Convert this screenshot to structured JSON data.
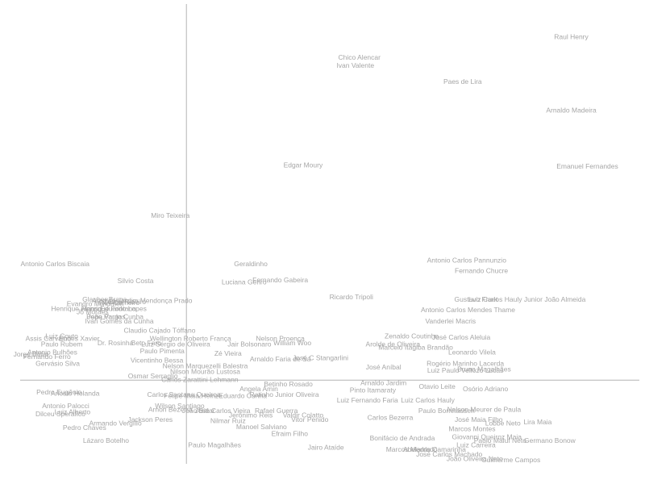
{
  "chart_data": {
    "type": "scatter",
    "title": "",
    "xlabel": "",
    "ylabel": "",
    "xlim": [
      -1.24,
      3.39
    ],
    "ylim": [
      -0.73,
      3.28
    ],
    "grid": false,
    "origin_axes": true,
    "color": "#a6a6a6",
    "points": [
      {
        "x": 2.87,
        "y": 2.99,
        "label": "Raul Henry"
      },
      {
        "x": 1.29,
        "y": 2.81,
        "label": "Chico Alencar"
      },
      {
        "x": 1.26,
        "y": 2.74,
        "label": "Ivan Valente"
      },
      {
        "x": 2.06,
        "y": 2.6,
        "label": "Paes de Lira"
      },
      {
        "x": 2.87,
        "y": 2.35,
        "label": "Arnaldo Madeira"
      },
      {
        "x": 0.87,
        "y": 1.87,
        "label": "Edgar Moury"
      },
      {
        "x": 2.99,
        "y": 1.86,
        "label": "Emanuel Fernandes"
      },
      {
        "x": -0.12,
        "y": 1.43,
        "label": "Miro Teixeira"
      },
      {
        "x": -0.98,
        "y": 1.01,
        "label": "Antonio Carlos Biscaia"
      },
      {
        "x": 0.48,
        "y": 1.01,
        "label": "Geraldinho"
      },
      {
        "x": 2.09,
        "y": 1.04,
        "label": "Antonio Carlos Pannunzio"
      },
      {
        "x": 2.2,
        "y": 0.95,
        "label": "Fernando Chucre"
      },
      {
        "x": -0.38,
        "y": 0.86,
        "label": "Silvio Costa"
      },
      {
        "x": 0.43,
        "y": 0.85,
        "label": "Luciana Genro"
      },
      {
        "x": 0.7,
        "y": 0.87,
        "label": "Fernando Gabeira"
      },
      {
        "x": 1.23,
        "y": 0.72,
        "label": "Ricardo Tripoli"
      },
      {
        "x": 2.16,
        "y": 0.7,
        "label": "Gustavo Fruet"
      },
      {
        "x": 2.54,
        "y": 0.7,
        "label": "Luiz Carlos Hauly Junior João Almeida"
      },
      {
        "x": -0.61,
        "y": 0.7,
        "label": "Glauber Braga"
      },
      {
        "x": -0.5,
        "y": 0.67,
        "label": "Ruy Carneiro"
      },
      {
        "x": -0.46,
        "y": 0.68,
        "label": "Zezéu Ribeiro"
      },
      {
        "x": -0.33,
        "y": 0.69,
        "label": "Arnaldo Jardim Mendonça Prado"
      },
      {
        "x": -0.68,
        "y": 0.66,
        "label": "Evandro Milhomen"
      },
      {
        "x": -0.58,
        "y": 0.62,
        "label": "Henrique Fontana"
      },
      {
        "x": -0.47,
        "y": 0.62,
        "label": "Eduardo Lopes"
      },
      {
        "x": -0.82,
        "y": 0.62,
        "label": "Henrique Afonso"
      },
      {
        "x": -0.7,
        "y": 0.59,
        "label": "Jô Moraes"
      },
      {
        "x": -0.6,
        "y": 0.55,
        "label": "Pepe Vargas"
      },
      {
        "x": -0.53,
        "y": 0.55,
        "label": "João Paulo Cunha"
      },
      {
        "x": 2.1,
        "y": 0.61,
        "label": "Antonio Carlos Mendes Thame"
      },
      {
        "x": -0.5,
        "y": 0.51,
        "label": "Ivan Gomes da Cunha"
      },
      {
        "x": 1.97,
        "y": 0.51,
        "label": "Vanderlei Macris"
      },
      {
        "x": -0.2,
        "y": 0.43,
        "label": "Claudio Cajado Tóffano"
      },
      {
        "x": 0.03,
        "y": 0.36,
        "label": "Wellington Roberto França"
      },
      {
        "x": 0.47,
        "y": 0.31,
        "label": "Jair Bolsonaro"
      },
      {
        "x": 0.7,
        "y": 0.36,
        "label": "Nelson Proença"
      },
      {
        "x": 0.79,
        "y": 0.32,
        "label": "William Woo"
      },
      {
        "x": 1.54,
        "y": 0.31,
        "label": "Arolde de Oliveira"
      },
      {
        "x": 1.68,
        "y": 0.38,
        "label": "Zenaldo Coutinho"
      },
      {
        "x": 2.05,
        "y": 0.37,
        "label": "José Carlos Aleluia"
      },
      {
        "x": 1.71,
        "y": 0.28,
        "label": "Marcelo Itagiba Brandão"
      },
      {
        "x": 2.13,
        "y": 0.24,
        "label": "Leonardo Vilela"
      },
      {
        "x": -0.93,
        "y": 0.38,
        "label": "Luiz Couto"
      },
      {
        "x": -1.03,
        "y": 0.36,
        "label": "Assis Carvalho"
      },
      {
        "x": -0.93,
        "y": 0.31,
        "label": "Paulo Rubem"
      },
      {
        "x": -1.0,
        "y": 0.24,
        "label": "Antonio Bulhões"
      },
      {
        "x": -1.16,
        "y": 0.22,
        "label": "Jorge Bittar"
      },
      {
        "x": -1.04,
        "y": 0.2,
        "label": "Fernando Ferro"
      },
      {
        "x": -0.96,
        "y": 0.14,
        "label": "Gervásio Silva"
      },
      {
        "x": -0.8,
        "y": 0.36,
        "label": "Eudes Xavier"
      },
      {
        "x": -0.53,
        "y": 0.32,
        "label": "Dr. Rosinha"
      },
      {
        "x": -0.3,
        "y": 0.32,
        "label": "Beto Faro"
      },
      {
        "x": -0.18,
        "y": 0.25,
        "label": "Paulo Pimenta"
      },
      {
        "x": -0.08,
        "y": 0.31,
        "label": "Luiz Sérgio de Oliveira"
      },
      {
        "x": 0.31,
        "y": 0.23,
        "label": "Zé Vieira"
      },
      {
        "x": 0.7,
        "y": 0.18,
        "label": "Arnaldo Faria de Sá"
      },
      {
        "x": 1.0,
        "y": 0.19,
        "label": "José C Stangarlini"
      },
      {
        "x": 1.47,
        "y": 0.11,
        "label": "José Aníbal"
      },
      {
        "x": 2.08,
        "y": 0.14,
        "label": "Rogério Marinho Lacerda"
      },
      {
        "x": 2.08,
        "y": 0.08,
        "label": "Luiz Paulo Vellozo Lucas"
      },
      {
        "x": 2.22,
        "y": 0.09,
        "label": "Bruno Magalhães"
      },
      {
        "x": -0.22,
        "y": 0.17,
        "label": "Vicentinho Bessa"
      },
      {
        "x": 0.14,
        "y": 0.12,
        "label": "Nelson Marquezelli Balestra"
      },
      {
        "x": 0.14,
        "y": 0.07,
        "label": "Nilson Mourão Lustosa"
      },
      {
        "x": 0.1,
        "y": 0.0,
        "label": "Carlos Zarattini Lehmann"
      },
      {
        "x": -0.25,
        "y": 0.03,
        "label": "Osmar Serraglio"
      },
      {
        "x": 0.76,
        "y": -0.04,
        "label": "Betinho Rosado"
      },
      {
        "x": 1.47,
        "y": -0.03,
        "label": "Arnaldo Jardim"
      },
      {
        "x": 1.87,
        "y": -0.06,
        "label": "Otavio Leite"
      },
      {
        "x": 2.23,
        "y": -0.08,
        "label": "Osório Adriano"
      },
      {
        "x": 1.39,
        "y": -0.09,
        "label": "Pinto Itamaraty"
      },
      {
        "x": 0.54,
        "y": -0.08,
        "label": "Angela Amin"
      },
      {
        "x": 0.73,
        "y": -0.13,
        "label": "Ratinho Junior Oliveira"
      },
      {
        "x": 0.42,
        "y": -0.14,
        "label": "Eduardo Cunha"
      },
      {
        "x": 1.35,
        "y": -0.18,
        "label": "Luiz Fernando Faria"
      },
      {
        "x": 1.8,
        "y": -0.18,
        "label": "Luiz Carlos Hauly"
      },
      {
        "x": -0.83,
        "y": -0.12,
        "label": "Ariosto Holanda"
      },
      {
        "x": -0.95,
        "y": -0.11,
        "label": "Pedro Eugênio"
      },
      {
        "x": -0.9,
        "y": -0.23,
        "label": "Antonio Palocci"
      },
      {
        "x": -0.85,
        "y": -0.28,
        "label": "Luiz Alberto"
      },
      {
        "x": -0.94,
        "y": -0.3,
        "label": "Dilceu Sperafico"
      },
      {
        "x": -0.02,
        "y": -0.13,
        "label": "Carlos Santana Queiroz"
      },
      {
        "x": 0.05,
        "y": -0.14,
        "label": "Felipe Maia Heinze"
      },
      {
        "x": -0.05,
        "y": -0.23,
        "label": "Wilson Santiago"
      },
      {
        "x": -0.12,
        "y": -0.26,
        "label": "Arnon Bezerra"
      },
      {
        "x": 0.09,
        "y": -0.27,
        "label": "João Bittar"
      },
      {
        "x": 0.27,
        "y": -0.27,
        "label": "José Carlos Vieira"
      },
      {
        "x": 0.67,
        "y": -0.27,
        "label": "Rafael Guerra"
      },
      {
        "x": 0.48,
        "y": -0.31,
        "label": "Jerônimo Reis"
      },
      {
        "x": 0.87,
        "y": -0.31,
        "label": "Valdir Colatto"
      },
      {
        "x": 0.92,
        "y": -0.35,
        "label": "Vitor Penido"
      },
      {
        "x": 0.31,
        "y": -0.36,
        "label": "Nilmar Ruiz"
      },
      {
        "x": -0.27,
        "y": -0.35,
        "label": "Jackson Peres"
      },
      {
        "x": -0.53,
        "y": -0.38,
        "label": "Armando Vergílio"
      },
      {
        "x": -0.76,
        "y": -0.42,
        "label": "Pedro Chaves"
      },
      {
        "x": 0.56,
        "y": -0.41,
        "label": "Manoel Salviano"
      },
      {
        "x": 0.77,
        "y": -0.47,
        "label": "Efraim Filho"
      },
      {
        "x": 1.52,
        "y": -0.33,
        "label": "Carlos Bezerra"
      },
      {
        "x": 1.94,
        "y": -0.27,
        "label": "Paulo Bornhausen"
      },
      {
        "x": 2.22,
        "y": -0.26,
        "label": "Nelson Meurer de Paula"
      },
      {
        "x": 2.18,
        "y": -0.35,
        "label": "José Maia Filho"
      },
      {
        "x": 2.36,
        "y": -0.38,
        "label": "Lobbe Neto"
      },
      {
        "x": 2.62,
        "y": -0.37,
        "label": "Lira Maia"
      },
      {
        "x": 2.13,
        "y": -0.43,
        "label": "Marcos Montes"
      },
      {
        "x": 2.24,
        "y": -0.5,
        "label": "Giovanni Queiroz Maia"
      },
      {
        "x": 2.34,
        "y": -0.53,
        "label": "Paulo Maluf Neto"
      },
      {
        "x": 2.16,
        "y": -0.57,
        "label": "Luiz Carreira"
      },
      {
        "x": 2.71,
        "y": -0.53,
        "label": "Germano Bonow"
      },
      {
        "x": 1.61,
        "y": -0.51,
        "label": "Bonifácio de Andrada"
      },
      {
        "x": 1.85,
        "y": -0.61,
        "label": "Abelardo Camarinha"
      },
      {
        "x": 1.96,
        "y": -0.65,
        "label": "José Carlos Machado"
      },
      {
        "x": 2.15,
        "y": -0.69,
        "label": "João Oliveira Neto"
      },
      {
        "x": 2.42,
        "y": -0.7,
        "label": "Guilherme Campos"
      },
      {
        "x": 1.68,
        "y": -0.61,
        "label": "Marcos Medrado"
      },
      {
        "x": 1.04,
        "y": -0.59,
        "label": "Jairo Ataíde"
      },
      {
        "x": 0.21,
        "y": -0.57,
        "label": "Paulo Magalhães"
      },
      {
        "x": -0.6,
        "y": -0.53,
        "label": "Lázaro Botelho"
      }
    ]
  }
}
